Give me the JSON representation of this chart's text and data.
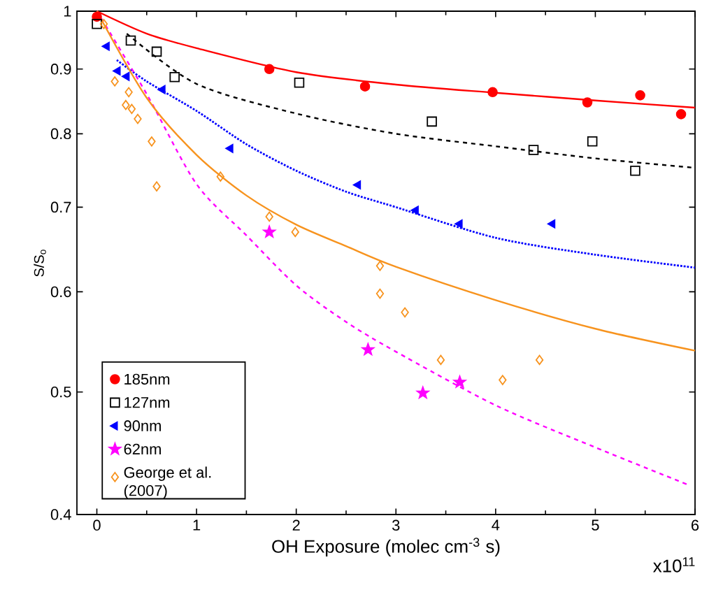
{
  "chart_data": {
    "type": "scatter",
    "xlabel": "OH Exposure (molec cm$^{-3}$ s)",
    "ylabel": "S/S$_{o}$",
    "annotations": [
      "x10$^{11}$"
    ],
    "xlim": [
      -0.2,
      6
    ],
    "xticks": [
      0,
      1,
      2,
      3,
      4,
      5,
      6
    ],
    "ylim": [
      0.4,
      1
    ],
    "yticks": [
      0.4,
      0.5,
      0.6,
      0.7,
      0.8,
      0.9,
      1
    ],
    "log": "y",
    "grid": false,
    "legend": "bottom left",
    "series": [
      {
        "name": "185nm",
        "marker": "circle",
        "color": "#ff0000",
        "x": [
          0,
          1.73,
          2.69,
          3.97,
          4.92,
          5.45,
          5.86
        ],
        "values": [
          0.99,
          0.9,
          0.872,
          0.863,
          0.847,
          0.858,
          0.829
        ]
      },
      {
        "name": "127nm",
        "marker": "square",
        "color": "#000000",
        "x": [
          0,
          0.34,
          0.6,
          0.78,
          2.03,
          3.36,
          4.38,
          4.97,
          5.4
        ],
        "values": [
          0.977,
          0.948,
          0.929,
          0.887,
          0.878,
          0.818,
          0.777,
          0.789,
          0.748
        ]
      },
      {
        "name": "90nm",
        "marker": "triangle",
        "color": "#0000ff",
        "x": [
          0.1,
          0.21,
          0.3,
          0.66,
          1.34,
          2.62,
          3.2,
          3.64,
          4.57
        ],
        "values": [
          0.938,
          0.897,
          0.888,
          0.867,
          0.779,
          0.729,
          0.696,
          0.679,
          0.679
        ]
      },
      {
        "name": "62nm",
        "marker": "star",
        "color": "#ff00ff",
        "x": [
          1.73,
          2.72,
          3.27,
          3.64
        ],
        "values": [
          0.669,
          0.54,
          0.499,
          0.509
        ]
      },
      {
        "name": "George et al. (2007)",
        "marker": "diamond",
        "color": "#f7931e",
        "x": [
          0.07,
          0.18,
          0.32,
          0.29,
          0.35,
          0.41,
          0.55,
          0.6,
          1.24,
          1.73,
          1.99,
          2.84,
          2.84,
          3.09,
          3.45,
          4.07,
          4.44
        ],
        "values": [
          0.977,
          0.88,
          0.863,
          0.843,
          0.837,
          0.822,
          0.789,
          0.727,
          0.74,
          0.688,
          0.669,
          0.629,
          0.598,
          0.578,
          0.53,
          0.511,
          0.53
        ]
      },
      {
        "type": "line",
        "marker": "none",
        "line_style": "solid",
        "color": "#ff0000",
        "x": [
          0,
          0.5,
          1,
          2,
          3,
          4,
          5,
          6
        ],
        "values": [
          1,
          0.96,
          0.935,
          0.895,
          0.875,
          0.862,
          0.85,
          0.839
        ]
      },
      {
        "type": "line",
        "marker": "none",
        "line_style": "dashed",
        "color": "#000000",
        "x": [
          0.3,
          1,
          2,
          3,
          4,
          5,
          6
        ],
        "values": [
          0.96,
          0.876,
          0.83,
          0.8,
          0.782,
          0.765,
          0.752
        ]
      },
      {
        "type": "line",
        "marker": "none",
        "line_style": "dotted",
        "color": "#0000ff",
        "x": [
          0.2,
          0.5,
          1,
          1.5,
          2,
          2.5,
          3,
          4,
          5,
          6
        ],
        "values": [
          0.915,
          0.88,
          0.834,
          0.785,
          0.748,
          0.72,
          0.7,
          0.662,
          0.642,
          0.627
        ]
      },
      {
        "type": "line",
        "marker": "none",
        "line_style": "dashed",
        "color": "#ff00ff",
        "x": [
          0,
          0.5,
          1,
          1.5,
          2,
          2.5,
          3,
          4,
          5,
          5.94
        ],
        "values": [
          1,
          0.86,
          0.73,
          0.665,
          0.607,
          0.568,
          0.538,
          0.488,
          0.452,
          0.422
        ]
      },
      {
        "type": "line",
        "marker": "none",
        "line_style": "solid",
        "color": "#f7931e",
        "x": [
          0,
          0.5,
          1,
          1.5,
          2,
          2.5,
          3,
          4,
          5,
          6
        ],
        "values": [
          1,
          0.854,
          0.77,
          0.715,
          0.678,
          0.652,
          0.628,
          0.591,
          0.561,
          0.539
        ]
      }
    ]
  }
}
